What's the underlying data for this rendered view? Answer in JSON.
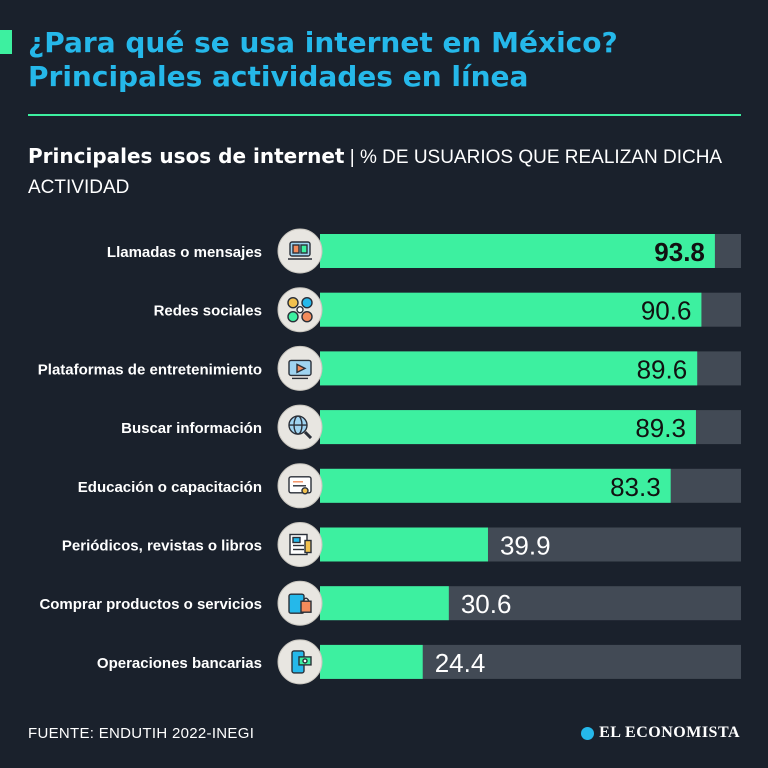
{
  "header": {
    "title_line1": "¿Para qué se usa internet en México?",
    "title_line2": "Principales actividades en línea",
    "subtitle_bold": "Principales usos de internet",
    "subtitle_separator": " | ",
    "subtitle_rest": "% DE USUARIOS QUE REALIZAN DICHA ACTIVIDAD"
  },
  "colors": {
    "background": "#1a212c",
    "accent": "#3df0a0",
    "title": "#25b8ea",
    "bar_fill": "#3df0a0",
    "bar_track": "#424a55",
    "icon_circle": "#e8e6e1"
  },
  "chart_data": {
    "type": "bar",
    "orientation": "horizontal",
    "title": "Principales usos de internet",
    "unit": "% de usuarios que realizan dicha actividad",
    "xlim": [
      0,
      100
    ],
    "grid": false,
    "categories": [
      "Llamadas o mensajes",
      "Redes sociales",
      "Plataformas de entretenimiento",
      "Buscar información",
      "Educación o capacitación",
      "Periódicos, revistas o libros",
      "Comprar productos o servicios",
      "Operaciones bancarias"
    ],
    "values": [
      93.8,
      90.6,
      89.6,
      89.3,
      83.3,
      39.9,
      30.6,
      24.4
    ],
    "value_labels": [
      "93.8",
      "90.6",
      "89.6",
      "89.3",
      "83.3",
      "39.9",
      "30.6",
      "24.4"
    ],
    "icons": [
      "video-call-icon",
      "social-networks-icon",
      "streaming-icon",
      "magnifier-globe-icon",
      "online-course-icon",
      "newspaper-icon",
      "shopping-icon",
      "banking-phone-icon"
    ],
    "highlight_index": 0
  },
  "footer": {
    "source": "FUENTE: ENDUTIH 2022-INEGI",
    "brand": "EL ECONOMISTA"
  }
}
